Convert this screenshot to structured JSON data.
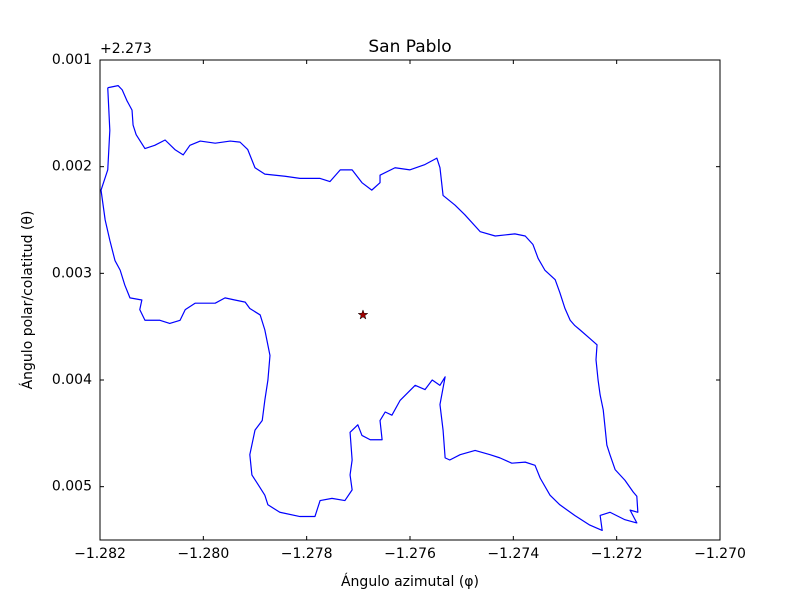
{
  "chart_data": {
    "type": "line",
    "title": "San Pablo",
    "xlabel": "Ángulo azimutal (φ)",
    "ylabel": "Ángulo polar/colatitud (θ)",
    "y_offset_label": "+2.273",
    "xlim": [
      -1.282,
      -1.27
    ],
    "xticks": [
      {
        "value": -1.282,
        "label": "−1.282"
      },
      {
        "value": -1.28,
        "label": "−1.280"
      },
      {
        "value": -1.278,
        "label": "−1.278"
      },
      {
        "value": -1.276,
        "label": "−1.276"
      },
      {
        "value": -1.274,
        "label": "−1.274"
      },
      {
        "value": -1.272,
        "label": "−1.272"
      },
      {
        "value": -1.27,
        "label": "−1.270"
      }
    ],
    "ylim": [
      0.001,
      0.0055
    ],
    "y_inverted": true,
    "yticks": [
      0.001,
      0.002,
      0.003,
      0.004,
      0.005
    ],
    "series": [
      {
        "color": "#0000ff",
        "x": [
          -1.28185,
          -1.28165,
          -1.28157,
          -1.28148,
          -1.28138,
          -1.28136,
          -1.2813,
          -1.28113,
          -1.28094,
          -1.28074,
          -1.28055,
          -1.28039,
          -1.28026,
          -1.28006,
          -1.27977,
          -1.27948,
          -1.27929,
          -1.27914,
          -1.279,
          -1.27881,
          -1.27842,
          -1.27813,
          -1.27774,
          -1.27755,
          -1.27735,
          -1.27712,
          -1.27693,
          -1.27674,
          -1.27658,
          -1.27658,
          -1.27629,
          -1.276,
          -1.27571,
          -1.27548,
          -1.27542,
          -1.27536,
          -1.27513,
          -1.27494,
          -1.27464,
          -1.27435,
          -1.27416,
          -1.27397,
          -1.27377,
          -1.27362,
          -1.27352,
          -1.27339,
          -1.27319,
          -1.2731,
          -1.273,
          -1.2729,
          -1.27281,
          -1.27271,
          -1.27252,
          -1.27238,
          -1.2724,
          -1.27236,
          -1.27232,
          -1.27226,
          -1.27223,
          -1.27219,
          -1.27213,
          -1.27203,
          -1.27184,
          -1.27168,
          -1.27161,
          -1.27159,
          -1.27174,
          -1.27161,
          -1.27184,
          -1.27213,
          -1.27232,
          -1.27228,
          -1.27252,
          -1.27281,
          -1.2731,
          -1.27329,
          -1.27348,
          -1.27358,
          -1.27377,
          -1.27403,
          -1.27426,
          -1.27445,
          -1.27474,
          -1.27503,
          -1.27523,
          -1.27532,
          -1.27536,
          -1.27542,
          -1.27532,
          -1.27542,
          -1.27557,
          -1.27571,
          -1.2759,
          -1.27619,
          -1.27635,
          -1.27648,
          -1.27658,
          -1.27654,
          -1.27677,
          -1.27693,
          -1.27701,
          -1.27716,
          -1.27712,
          -1.27716,
          -1.27712,
          -1.27726,
          -1.27751,
          -1.27774,
          -1.27784,
          -1.27813,
          -1.27852,
          -1.27875,
          -1.27881,
          -1.27894,
          -1.27906,
          -1.2791,
          -1.279,
          -1.27886,
          -1.27881,
          -1.27875,
          -1.27871,
          -1.27881,
          -1.2789,
          -1.2791,
          -1.27919,
          -1.27939,
          -1.27958,
          -1.27977,
          -1.27997,
          -1.28016,
          -1.28035,
          -1.28045,
          -1.28065,
          -1.28084,
          -1.28113,
          -1.28123,
          -1.28119,
          -1.28142,
          -1.28152,
          -1.28161,
          -1.28171,
          -1.28181,
          -1.2819,
          -1.28198,
          -1.28185,
          -1.28181,
          -1.28185
        ],
        "values": [
          0.00126,
          0.00124,
          0.00128,
          0.00138,
          0.00147,
          0.00161,
          0.0017,
          0.00183,
          0.0018,
          0.00175,
          0.00184,
          0.00189,
          0.0018,
          0.00176,
          0.00178,
          0.00176,
          0.00177,
          0.00184,
          0.00201,
          0.00207,
          0.00209,
          0.00211,
          0.00211,
          0.00214,
          0.00203,
          0.00203,
          0.00215,
          0.00222,
          0.00215,
          0.00208,
          0.00201,
          0.00203,
          0.00198,
          0.00192,
          0.00201,
          0.00227,
          0.00236,
          0.00245,
          0.00261,
          0.00265,
          0.00264,
          0.00263,
          0.00265,
          0.00273,
          0.00286,
          0.00297,
          0.00306,
          0.00318,
          0.00333,
          0.00344,
          0.00349,
          0.00353,
          0.00361,
          0.00367,
          0.00381,
          0.004,
          0.00414,
          0.00428,
          0.00442,
          0.00461,
          0.0047,
          0.00484,
          0.00494,
          0.00505,
          0.00509,
          0.00524,
          0.00522,
          0.00534,
          0.00531,
          0.00524,
          0.00527,
          0.00541,
          0.00536,
          0.00527,
          0.00517,
          0.00508,
          0.00492,
          0.0048,
          0.00477,
          0.00478,
          0.00473,
          0.0047,
          0.00466,
          0.0047,
          0.00475,
          0.00473,
          0.00447,
          0.00423,
          0.00397,
          0.00405,
          0.004,
          0.00409,
          0.00405,
          0.00419,
          0.00433,
          0.0043,
          0.00438,
          0.00456,
          0.00456,
          0.00452,
          0.00442,
          0.00449,
          0.00475,
          0.00489,
          0.00503,
          0.00513,
          0.00511,
          0.00513,
          0.00528,
          0.00528,
          0.00524,
          0.00517,
          0.00508,
          0.00498,
          0.00489,
          0.0047,
          0.00447,
          0.00438,
          0.00419,
          0.004,
          0.00377,
          0.00353,
          0.00339,
          0.00333,
          0.00327,
          0.00325,
          0.00323,
          0.00328,
          0.00328,
          0.00328,
          0.00334,
          0.00344,
          0.00347,
          0.00344,
          0.00344,
          0.00334,
          0.00325,
          0.00323,
          0.00311,
          0.00297,
          0.00288,
          0.00269,
          0.0025,
          0.00222,
          0.00203,
          0.00166,
          0.00126
        ]
      },
      {
        "color": "#a00000",
        "marker": "star",
        "x": [
          -1.27691
        ],
        "values": [
          0.00339
        ]
      }
    ]
  }
}
